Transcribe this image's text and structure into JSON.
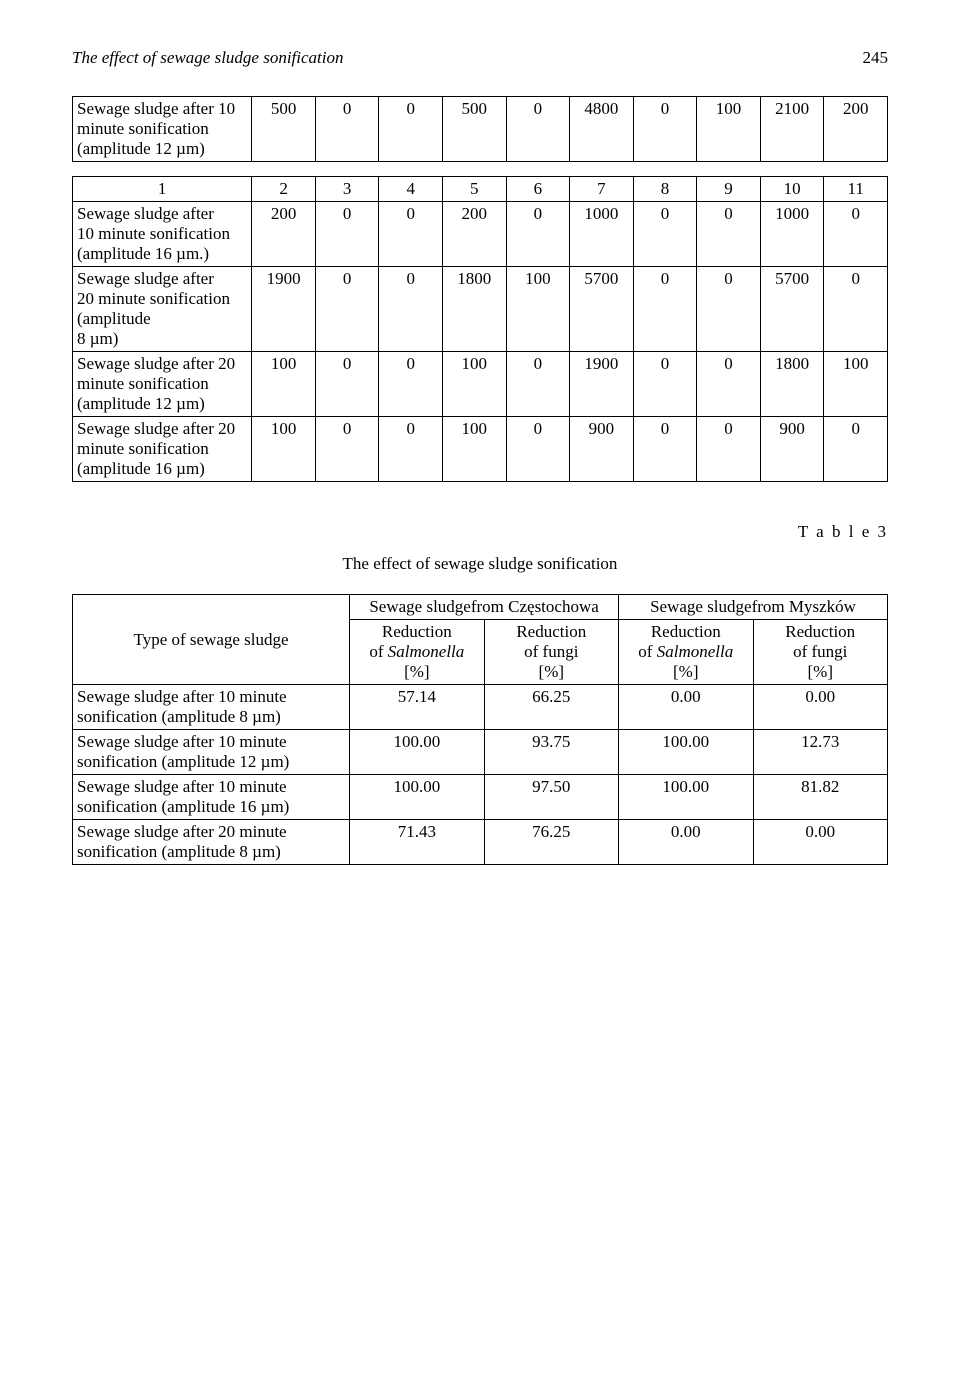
{
  "header": {
    "title": "The effect of sewage sludge sonification",
    "page_number": "245"
  },
  "table1": {
    "row": {
      "label": "Sewage sludge after 10 minute sonification (amplitude 12 µm)",
      "vals": [
        "500",
        "0",
        "0",
        "500",
        "0",
        "4800",
        "0",
        "100",
        "2100",
        "200"
      ]
    }
  },
  "table2": {
    "header_nums": [
      "1",
      "2",
      "3",
      "4",
      "5",
      "6",
      "7",
      "8",
      "9",
      "10",
      "11"
    ],
    "rows": [
      {
        "label": "Sewage sludge after\n10 minute sonification (amplitude 16 µm.)",
        "vals": [
          "200",
          "0",
          "0",
          "200",
          "0",
          "1000",
          "0",
          "0",
          "1000",
          "0"
        ]
      },
      {
        "label": "Sewage sludge after\n20 minute sonification (amplitude\n8 µm)",
        "vals": [
          "1900",
          "0",
          "0",
          "1800",
          "100",
          "5700",
          "0",
          "0",
          "5700",
          "0"
        ]
      },
      {
        "label": "Sewage sludge after 20 minute sonification (amplitude 12 µm)",
        "vals": [
          "100",
          "0",
          "0",
          "100",
          "0",
          "1900",
          "0",
          "0",
          "1800",
          "100"
        ]
      },
      {
        "label": "Sewage sludge after 20 minute sonification (amplitude 16 µm)",
        "vals": [
          "100",
          "0",
          "0",
          "100",
          "0",
          "900",
          "0",
          "0",
          "900",
          "0"
        ]
      }
    ]
  },
  "table3": {
    "label": "T a b l e  3",
    "caption": "The effect of sewage sludge sonification",
    "row_header_label": "Type of sewage sludge",
    "group_headers": [
      "Sewage sludge\nfrom Częstochowa",
      "Sewage sludge\nfrom Myszków"
    ],
    "sub_headers": [
      "Reduction of Salmonella [%]",
      "Reduction of fungi [%]",
      "Reduction of Salmonella [%]",
      "Reduction of fungi [%]"
    ],
    "rows": [
      {
        "label": "Sewage sludge after 10 minute sonification (amplitude 8 µm)",
        "vals": [
          "57.14",
          "66.25",
          "0.00",
          "0.00"
        ]
      },
      {
        "label": "Sewage sludge after 10 minute sonification (amplitude 12 µm)",
        "vals": [
          "100.00",
          "93.75",
          "100.00",
          "12.73"
        ]
      },
      {
        "label": "Sewage sludge after 10 minute sonification (amplitude 16 µm)",
        "vals": [
          "100.00",
          "97.50",
          "100.00",
          "81.82"
        ]
      },
      {
        "label": "Sewage sludge after 20 minute sonification (amplitude 8 µm)",
        "vals": [
          "71.43",
          "76.25",
          "0.00",
          "0.00"
        ]
      }
    ]
  },
  "styling": {
    "background_color": "#ffffff",
    "text_color": "#000000",
    "border_color": "#000000",
    "body_fontsize_pt": 12,
    "font_family": "Times New Roman",
    "header_italic": true
  }
}
